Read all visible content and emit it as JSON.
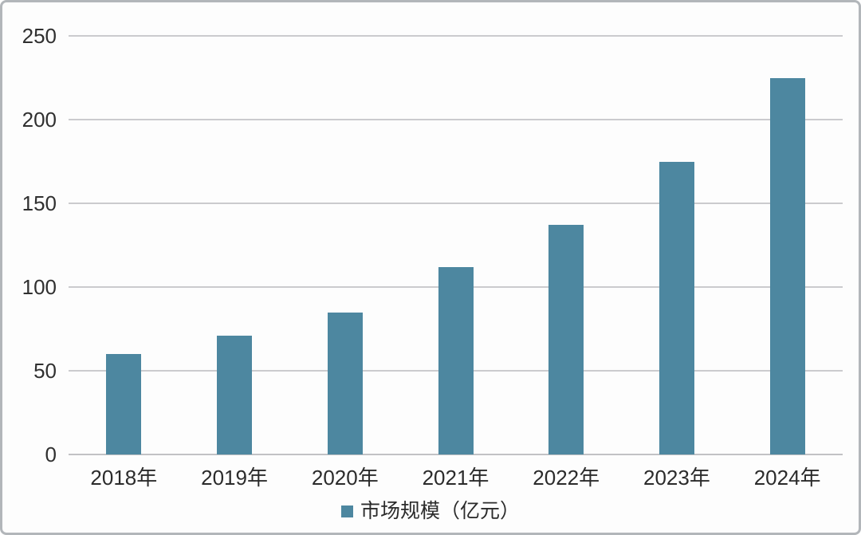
{
  "chart_data": {
    "type": "bar",
    "title": "",
    "categories": [
      "2018年",
      "2019年",
      "2020年",
      "2021年",
      "2022年",
      "2023年",
      "2024年"
    ],
    "series": [
      {
        "name": "市场规模（亿元）",
        "values": [
          60,
          71,
          85,
          112,
          137,
          175,
          225
        ]
      }
    ],
    "xlabel": "",
    "ylabel": "",
    "ylim": [
      0,
      250
    ],
    "yticks": [
      0,
      50,
      100,
      150,
      200,
      250
    ],
    "grid": true,
    "legend_position": "bottom",
    "legend": "市场规模（亿元）",
    "colors": {
      "bar": "#4d87a0",
      "gridline": "#cbcbce",
      "baseline": "#c2c2c5",
      "text": "#303030",
      "background": "#fdfdfd",
      "border": "#b2b6ba"
    }
  }
}
